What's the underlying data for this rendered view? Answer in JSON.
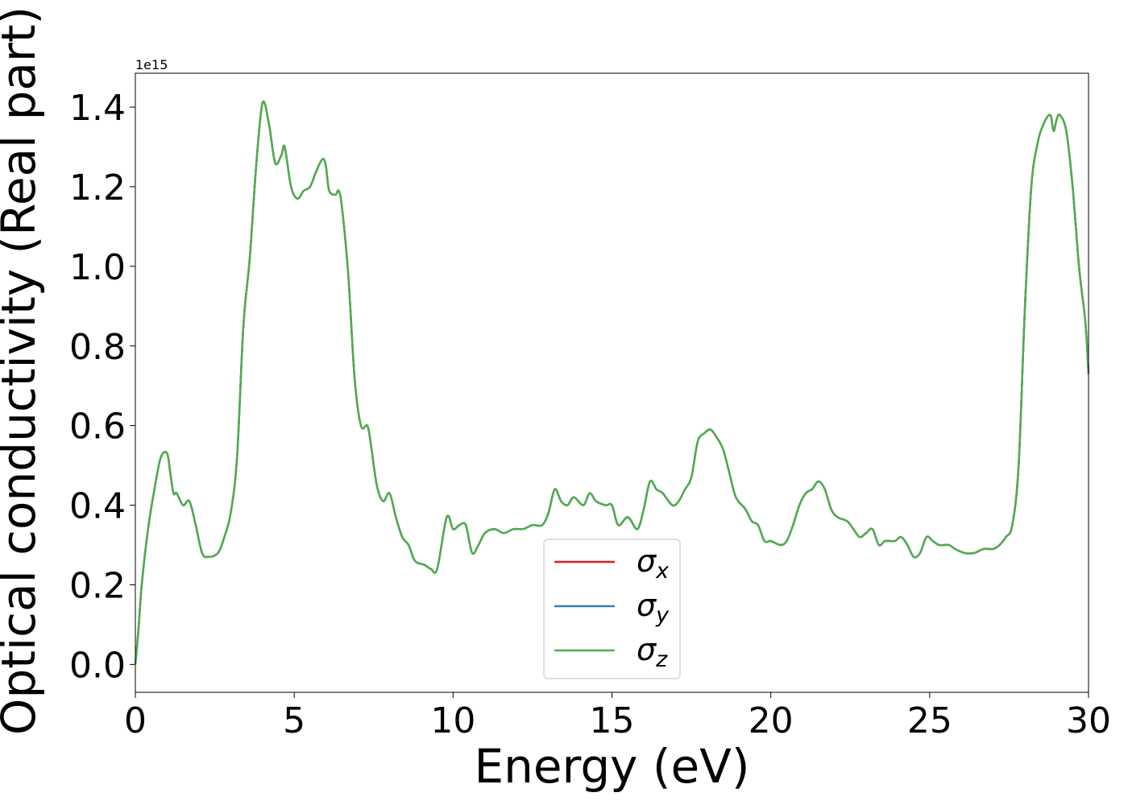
{
  "chart_data": {
    "type": "line",
    "xlabel": "Energy (eV)",
    "ylabel": "Optical conductivity (Real part)",
    "offset_label": "1e15",
    "xlim": [
      0,
      30
    ],
    "ylim": [
      -0.07,
      1.485
    ],
    "x_ticks": [
      0,
      5,
      10,
      15,
      20,
      25,
      30
    ],
    "y_ticks": [
      0.0,
      0.2,
      0.4,
      0.6,
      0.8,
      1.0,
      1.2,
      1.4
    ],
    "x_tick_labels": [
      "0",
      "5",
      "10",
      "15",
      "20",
      "25",
      "30"
    ],
    "y_tick_labels": [
      "0.0",
      "0.2",
      "0.4",
      "0.6",
      "0.8",
      "1.0",
      "1.2",
      "1.4"
    ],
    "grid": false,
    "legend_position": "lower-center",
    "x": [
      0.0,
      0.1,
      0.2,
      0.4,
      0.6,
      0.8,
      1.0,
      1.1,
      1.2,
      1.3,
      1.5,
      1.7,
      1.9,
      2.1,
      2.3,
      2.6,
      2.8,
      3.0,
      3.2,
      3.4,
      3.6,
      3.8,
      4.0,
      4.2,
      4.4,
      4.6,
      4.7,
      4.9,
      5.1,
      5.3,
      5.5,
      5.7,
      5.9,
      6.0,
      6.1,
      6.3,
      6.4,
      6.5,
      6.7,
      6.9,
      7.1,
      7.3,
      7.4,
      7.6,
      7.8,
      8.0,
      8.2,
      8.4,
      8.6,
      8.8,
      9.1,
      9.3,
      9.5,
      9.8,
      10.0,
      10.2,
      10.4,
      10.6,
      10.8,
      11.0,
      11.3,
      11.6,
      11.9,
      12.2,
      12.5,
      12.8,
      13.0,
      13.2,
      13.4,
      13.6,
      13.8,
      14.1,
      14.3,
      14.5,
      14.8,
      15.0,
      15.2,
      15.5,
      15.8,
      16.0,
      16.2,
      16.4,
      16.6,
      16.9,
      17.1,
      17.3,
      17.5,
      17.7,
      17.9,
      18.1,
      18.3,
      18.5,
      18.7,
      18.9,
      19.2,
      19.4,
      19.6,
      19.8,
      20.0,
      20.3,
      20.5,
      20.7,
      20.9,
      21.1,
      21.3,
      21.5,
      21.7,
      21.9,
      22.1,
      22.4,
      22.6,
      22.8,
      23.0,
      23.2,
      23.4,
      23.6,
      23.9,
      24.1,
      24.3,
      24.5,
      24.7,
      24.9,
      25.1,
      25.3,
      25.6,
      25.8,
      26.1,
      26.4,
      26.7,
      27.0,
      27.2,
      27.4,
      27.6,
      27.8,
      28.0,
      28.2,
      28.4,
      28.6,
      28.8,
      28.9,
      29.0,
      29.1,
      29.3,
      29.5,
      29.7,
      29.9,
      30.0
    ],
    "series": [
      {
        "name": "σx",
        "color": "#e41a1c",
        "values": [
          0.0,
          0.09,
          0.2,
          0.34,
          0.44,
          0.52,
          0.53,
          0.48,
          0.43,
          0.43,
          0.4,
          0.41,
          0.35,
          0.28,
          0.27,
          0.28,
          0.32,
          0.38,
          0.52,
          0.85,
          1.02,
          1.25,
          1.41,
          1.36,
          1.26,
          1.28,
          1.3,
          1.2,
          1.17,
          1.19,
          1.2,
          1.24,
          1.27,
          1.25,
          1.19,
          1.18,
          1.19,
          1.15,
          0.98,
          0.72,
          0.6,
          0.6,
          0.56,
          0.45,
          0.41,
          0.43,
          0.37,
          0.32,
          0.3,
          0.26,
          0.25,
          0.24,
          0.24,
          0.37,
          0.34,
          0.35,
          0.35,
          0.28,
          0.3,
          0.33,
          0.34,
          0.33,
          0.34,
          0.34,
          0.35,
          0.35,
          0.38,
          0.44,
          0.41,
          0.4,
          0.42,
          0.4,
          0.43,
          0.41,
          0.4,
          0.4,
          0.35,
          0.37,
          0.34,
          0.39,
          0.46,
          0.44,
          0.43,
          0.4,
          0.41,
          0.44,
          0.47,
          0.56,
          0.58,
          0.59,
          0.57,
          0.54,
          0.48,
          0.42,
          0.39,
          0.36,
          0.35,
          0.31,
          0.31,
          0.3,
          0.31,
          0.35,
          0.4,
          0.43,
          0.44,
          0.46,
          0.44,
          0.39,
          0.37,
          0.36,
          0.34,
          0.32,
          0.33,
          0.34,
          0.3,
          0.31,
          0.31,
          0.32,
          0.3,
          0.27,
          0.28,
          0.32,
          0.31,
          0.3,
          0.3,
          0.29,
          0.28,
          0.28,
          0.29,
          0.29,
          0.3,
          0.32,
          0.35,
          0.5,
          0.9,
          1.2,
          1.31,
          1.36,
          1.38,
          1.34,
          1.37,
          1.38,
          1.34,
          1.2,
          1.0,
          0.86,
          0.73
        ]
      },
      {
        "name": "σy",
        "color": "#377eb8",
        "values": [
          0.0,
          0.09,
          0.2,
          0.34,
          0.44,
          0.52,
          0.53,
          0.48,
          0.43,
          0.43,
          0.4,
          0.41,
          0.35,
          0.28,
          0.27,
          0.28,
          0.32,
          0.38,
          0.52,
          0.85,
          1.02,
          1.25,
          1.41,
          1.36,
          1.26,
          1.28,
          1.3,
          1.2,
          1.17,
          1.19,
          1.2,
          1.24,
          1.27,
          1.25,
          1.19,
          1.18,
          1.19,
          1.15,
          0.98,
          0.72,
          0.6,
          0.6,
          0.56,
          0.45,
          0.41,
          0.43,
          0.37,
          0.32,
          0.3,
          0.26,
          0.25,
          0.24,
          0.24,
          0.37,
          0.34,
          0.35,
          0.35,
          0.28,
          0.3,
          0.33,
          0.34,
          0.33,
          0.34,
          0.34,
          0.35,
          0.35,
          0.38,
          0.44,
          0.41,
          0.4,
          0.42,
          0.4,
          0.43,
          0.41,
          0.4,
          0.4,
          0.35,
          0.37,
          0.34,
          0.39,
          0.46,
          0.44,
          0.43,
          0.4,
          0.41,
          0.44,
          0.47,
          0.56,
          0.58,
          0.59,
          0.57,
          0.54,
          0.48,
          0.42,
          0.39,
          0.36,
          0.35,
          0.31,
          0.31,
          0.3,
          0.31,
          0.35,
          0.4,
          0.43,
          0.44,
          0.46,
          0.44,
          0.39,
          0.37,
          0.36,
          0.34,
          0.32,
          0.33,
          0.34,
          0.3,
          0.31,
          0.31,
          0.32,
          0.3,
          0.27,
          0.28,
          0.32,
          0.31,
          0.3,
          0.3,
          0.29,
          0.28,
          0.28,
          0.29,
          0.29,
          0.3,
          0.32,
          0.35,
          0.5,
          0.9,
          1.2,
          1.31,
          1.36,
          1.38,
          1.34,
          1.37,
          1.38,
          1.34,
          1.2,
          1.0,
          0.86,
          0.73
        ]
      },
      {
        "name": "σz",
        "color": "#4daf4a",
        "values": [
          0.0,
          0.09,
          0.2,
          0.34,
          0.44,
          0.52,
          0.53,
          0.48,
          0.43,
          0.43,
          0.4,
          0.41,
          0.35,
          0.28,
          0.27,
          0.28,
          0.32,
          0.38,
          0.52,
          0.85,
          1.02,
          1.25,
          1.41,
          1.36,
          1.26,
          1.28,
          1.3,
          1.2,
          1.17,
          1.19,
          1.2,
          1.24,
          1.27,
          1.25,
          1.19,
          1.18,
          1.19,
          1.15,
          0.98,
          0.72,
          0.6,
          0.6,
          0.56,
          0.45,
          0.41,
          0.43,
          0.37,
          0.32,
          0.3,
          0.26,
          0.25,
          0.24,
          0.24,
          0.37,
          0.34,
          0.35,
          0.35,
          0.28,
          0.3,
          0.33,
          0.34,
          0.33,
          0.34,
          0.34,
          0.35,
          0.35,
          0.38,
          0.44,
          0.41,
          0.4,
          0.42,
          0.4,
          0.43,
          0.41,
          0.4,
          0.4,
          0.35,
          0.37,
          0.34,
          0.39,
          0.46,
          0.44,
          0.43,
          0.4,
          0.41,
          0.44,
          0.47,
          0.56,
          0.58,
          0.59,
          0.57,
          0.54,
          0.48,
          0.42,
          0.39,
          0.36,
          0.35,
          0.31,
          0.31,
          0.3,
          0.31,
          0.35,
          0.4,
          0.43,
          0.44,
          0.46,
          0.44,
          0.39,
          0.37,
          0.36,
          0.34,
          0.32,
          0.33,
          0.34,
          0.3,
          0.31,
          0.31,
          0.32,
          0.3,
          0.27,
          0.28,
          0.32,
          0.31,
          0.3,
          0.3,
          0.29,
          0.28,
          0.28,
          0.29,
          0.29,
          0.3,
          0.32,
          0.35,
          0.5,
          0.9,
          1.2,
          1.31,
          1.36,
          1.38,
          1.34,
          1.37,
          1.38,
          1.34,
          1.2,
          1.0,
          0.86,
          0.73
        ]
      }
    ],
    "legend": [
      {
        "symbol": "σ",
        "subscript": "x",
        "color": "#e41a1c"
      },
      {
        "symbol": "σ",
        "subscript": "y",
        "color": "#377eb8"
      },
      {
        "symbol": "σ",
        "subscript": "z",
        "color": "#4daf4a"
      }
    ]
  }
}
